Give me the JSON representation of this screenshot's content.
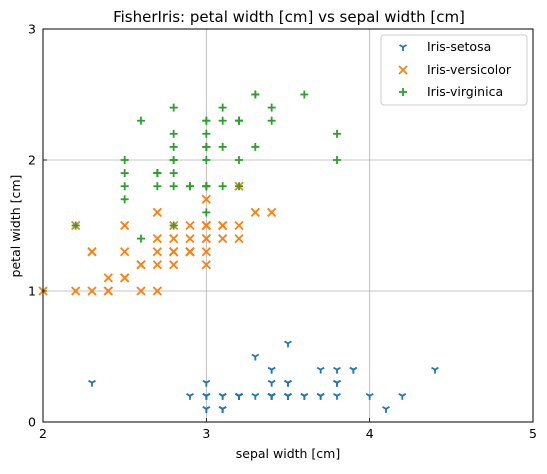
{
  "chart_data": {
    "type": "scatter",
    "title": "FisherIris: petal width [cm] vs sepal width [cm]",
    "xlabel": "sepal width [cm]",
    "ylabel": "petal width [cm]",
    "xlim": [
      2,
      5
    ],
    "ylim": [
      0,
      3
    ],
    "xticks": [
      2,
      3,
      4,
      5
    ],
    "yticks": [
      0,
      1,
      2,
      3
    ],
    "grid": true,
    "legend_position": "top-right",
    "series": [
      {
        "name": "Iris-setosa",
        "marker": "tri-down",
        "color": "#1f77b4",
        "points": [
          [
            3.5,
            0.2
          ],
          [
            3.0,
            0.2
          ],
          [
            3.2,
            0.2
          ],
          [
            3.1,
            0.2
          ],
          [
            3.6,
            0.2
          ],
          [
            3.9,
            0.4
          ],
          [
            3.4,
            0.3
          ],
          [
            3.4,
            0.2
          ],
          [
            2.9,
            0.2
          ],
          [
            3.1,
            0.1
          ],
          [
            3.7,
            0.2
          ],
          [
            3.4,
            0.2
          ],
          [
            3.0,
            0.1
          ],
          [
            3.0,
            0.1
          ],
          [
            4.0,
            0.2
          ],
          [
            4.4,
            0.4
          ],
          [
            3.9,
            0.4
          ],
          [
            3.5,
            0.3
          ],
          [
            3.8,
            0.3
          ],
          [
            3.8,
            0.3
          ],
          [
            3.4,
            0.2
          ],
          [
            3.7,
            0.4
          ],
          [
            3.6,
            0.2
          ],
          [
            3.3,
            0.5
          ],
          [
            3.4,
            0.2
          ],
          [
            3.0,
            0.2
          ],
          [
            3.4,
            0.4
          ],
          [
            3.5,
            0.2
          ],
          [
            3.4,
            0.2
          ],
          [
            3.2,
            0.2
          ],
          [
            3.1,
            0.2
          ],
          [
            3.4,
            0.4
          ],
          [
            4.1,
            0.1
          ],
          [
            4.2,
            0.2
          ],
          [
            3.1,
            0.1
          ],
          [
            3.2,
            0.2
          ],
          [
            3.5,
            0.2
          ],
          [
            3.1,
            0.1
          ],
          [
            3.0,
            0.2
          ],
          [
            3.4,
            0.2
          ],
          [
            3.5,
            0.3
          ],
          [
            2.3,
            0.3
          ],
          [
            3.2,
            0.2
          ],
          [
            3.5,
            0.6
          ],
          [
            3.8,
            0.4
          ],
          [
            3.0,
            0.3
          ],
          [
            3.8,
            0.2
          ],
          [
            3.2,
            0.2
          ],
          [
            3.7,
            0.2
          ],
          [
            3.3,
            0.2
          ]
        ]
      },
      {
        "name": "Iris-versicolor",
        "marker": "x",
        "color": "#ff7f0e",
        "points": [
          [
            3.2,
            1.4
          ],
          [
            3.2,
            1.5
          ],
          [
            3.1,
            1.5
          ],
          [
            2.3,
            1.3
          ],
          [
            2.8,
            1.5
          ],
          [
            2.8,
            1.3
          ],
          [
            3.3,
            1.6
          ],
          [
            2.4,
            1.0
          ],
          [
            2.9,
            1.3
          ],
          [
            2.7,
            1.4
          ],
          [
            2.0,
            1.0
          ],
          [
            3.0,
            1.5
          ],
          [
            2.2,
            1.0
          ],
          [
            2.9,
            1.4
          ],
          [
            2.9,
            1.3
          ],
          [
            3.1,
            1.4
          ],
          [
            3.0,
            1.5
          ],
          [
            2.7,
            1.0
          ],
          [
            2.2,
            1.5
          ],
          [
            2.5,
            1.1
          ],
          [
            3.2,
            1.8
          ],
          [
            2.8,
            1.3
          ],
          [
            2.5,
            1.5
          ],
          [
            2.8,
            1.2
          ],
          [
            2.9,
            1.3
          ],
          [
            3.0,
            1.4
          ],
          [
            2.8,
            1.4
          ],
          [
            3.0,
            1.7
          ],
          [
            2.9,
            1.5
          ],
          [
            2.6,
            1.0
          ],
          [
            2.4,
            1.1
          ],
          [
            2.4,
            1.0
          ],
          [
            2.7,
            1.2
          ],
          [
            2.7,
            1.6
          ],
          [
            3.0,
            1.5
          ],
          [
            3.4,
            1.6
          ],
          [
            3.1,
            1.5
          ],
          [
            2.3,
            1.3
          ],
          [
            3.0,
            1.3
          ],
          [
            2.5,
            1.3
          ],
          [
            2.6,
            1.2
          ],
          [
            3.0,
            1.4
          ],
          [
            2.6,
            1.2
          ],
          [
            2.3,
            1.0
          ],
          [
            2.7,
            1.3
          ],
          [
            3.0,
            1.2
          ],
          [
            2.9,
            1.3
          ],
          [
            2.9,
            1.3
          ],
          [
            2.5,
            1.1
          ],
          [
            2.8,
            1.3
          ]
        ]
      },
      {
        "name": "Iris-virginica",
        "marker": "plus",
        "color": "#2ca02c",
        "points": [
          [
            3.3,
            2.5
          ],
          [
            2.7,
            1.9
          ],
          [
            3.0,
            2.1
          ],
          [
            2.9,
            1.8
          ],
          [
            3.0,
            2.2
          ],
          [
            3.0,
            2.1
          ],
          [
            2.5,
            1.7
          ],
          [
            2.9,
            1.8
          ],
          [
            2.5,
            1.8
          ],
          [
            3.6,
            2.5
          ],
          [
            3.2,
            2.0
          ],
          [
            2.7,
            1.9
          ],
          [
            3.0,
            2.1
          ],
          [
            2.5,
            2.0
          ],
          [
            2.8,
            2.4
          ],
          [
            3.2,
            2.3
          ],
          [
            3.0,
            1.8
          ],
          [
            3.8,
            2.2
          ],
          [
            2.6,
            2.3
          ],
          [
            2.2,
            1.5
          ],
          [
            3.2,
            2.3
          ],
          [
            2.8,
            2.0
          ],
          [
            2.8,
            2.0
          ],
          [
            2.7,
            1.8
          ],
          [
            3.3,
            2.1
          ],
          [
            3.2,
            1.8
          ],
          [
            2.8,
            1.8
          ],
          [
            3.0,
            1.8
          ],
          [
            2.8,
            2.1
          ],
          [
            3.0,
            1.6
          ],
          [
            2.8,
            1.9
          ],
          [
            3.8,
            2.0
          ],
          [
            2.8,
            2.2
          ],
          [
            2.8,
            1.5
          ],
          [
            2.6,
            1.4
          ],
          [
            3.0,
            2.3
          ],
          [
            3.4,
            2.4
          ],
          [
            3.1,
            1.8
          ],
          [
            3.0,
            1.8
          ],
          [
            3.1,
            2.1
          ],
          [
            3.1,
            2.4
          ],
          [
            3.1,
            2.3
          ],
          [
            2.7,
            1.9
          ],
          [
            3.2,
            2.3
          ],
          [
            3.3,
            2.5
          ],
          [
            3.0,
            2.3
          ],
          [
            2.5,
            1.9
          ],
          [
            3.0,
            2.0
          ],
          [
            3.4,
            2.3
          ],
          [
            3.0,
            1.8
          ]
        ]
      }
    ]
  }
}
